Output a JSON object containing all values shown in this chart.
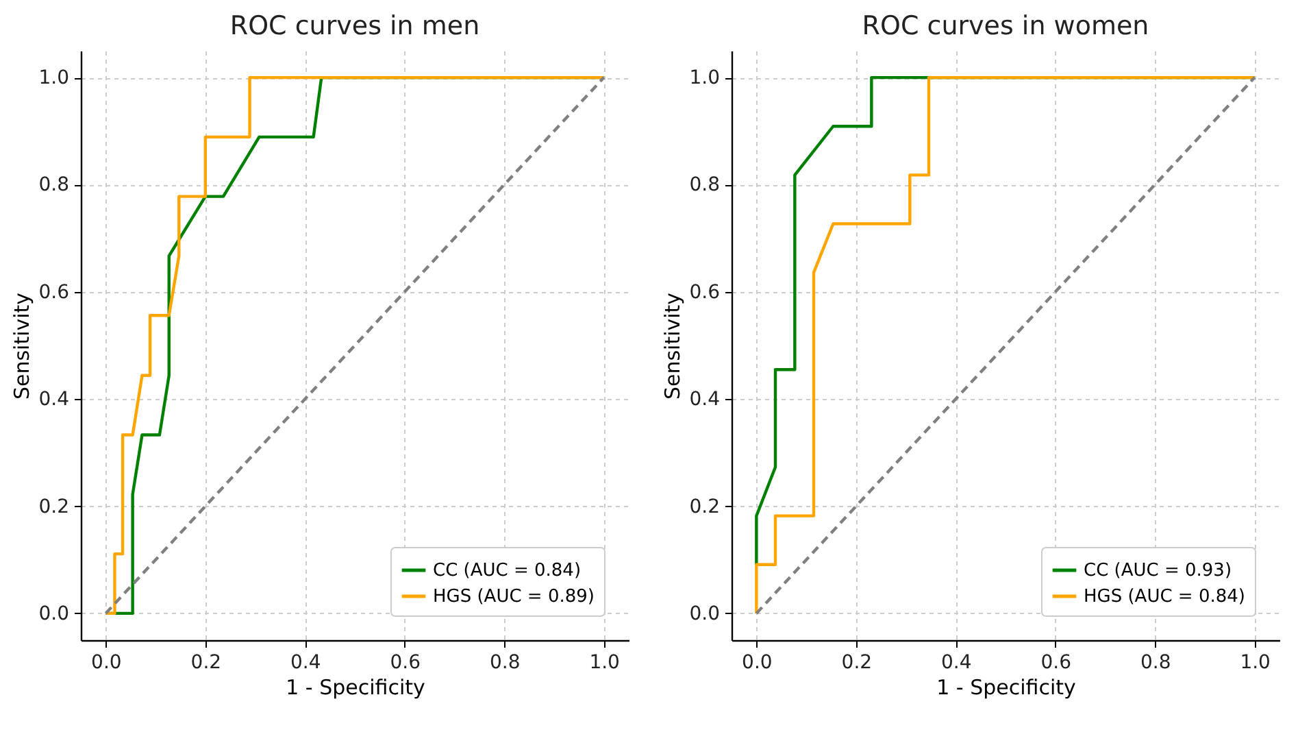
{
  "chart_data": [
    {
      "type": "line",
      "title": "ROC curves in men",
      "xlabel": "1 - Specificity",
      "ylabel": "Sensitivity",
      "xlim": [
        -0.05,
        1.05
      ],
      "ylim": [
        -0.05,
        1.05
      ],
      "xticks": [
        {
          "value": 0,
          "label": "0.0"
        },
        {
          "value": 0.2,
          "label": "0.2"
        },
        {
          "value": 0.4,
          "label": "0.4"
        },
        {
          "value": 0.6,
          "label": "0.6"
        },
        {
          "value": 0.8,
          "label": "0.8"
        },
        {
          "value": 1,
          "label": "1.0"
        }
      ],
      "yticks": [
        {
          "value": 0,
          "label": "0.0"
        },
        {
          "value": 0.2,
          "label": "0.2"
        },
        {
          "value": 0.4,
          "label": "0.4"
        },
        {
          "value": 0.6,
          "label": "0.6"
        },
        {
          "value": 0.8,
          "label": "0.8"
        },
        {
          "value": 1,
          "label": "1.0"
        }
      ],
      "grid": true,
      "legend": "bottom right",
      "line_style": "solid",
      "series": [
        {
          "name": "CC (AUC = 0.84)",
          "color": "#008000",
          "x": [
            0,
            0.054,
            0.054,
            0.073,
            0.108,
            0.127,
            0.127,
            0.2,
            0.236,
            0.308,
            0.417,
            0.433,
            1
          ],
          "values": [
            0,
            0,
            0.222,
            0.333,
            0.333,
            0.444,
            0.667,
            0.778,
            0.778,
            0.889,
            0.889,
            1,
            1
          ]
        },
        {
          "name": "HGS (AUC = 0.89)",
          "color": "#ffa500",
          "x": [
            0,
            0.018,
            0.018,
            0.034,
            0.034,
            0.054,
            0.073,
            0.089,
            0.089,
            0.127,
            0.147,
            0.147,
            0.2,
            0.2,
            0.289,
            0.289,
            1
          ],
          "values": [
            0,
            0,
            0.111,
            0.111,
            0.333,
            0.333,
            0.444,
            0.444,
            0.556,
            0.556,
            0.667,
            0.778,
            0.778,
            0.889,
            0.889,
            1,
            1
          ]
        },
        {
          "color": "#808080",
          "line_style": "dashed",
          "x": [
            0,
            1
          ],
          "values": [
            0,
            1
          ]
        }
      ]
    },
    {
      "type": "line",
      "title": "ROC curves in women",
      "xlabel": "1 - Specificity",
      "ylabel": "Sensitivity",
      "xlim": [
        -0.05,
        1.05
      ],
      "ylim": [
        -0.05,
        1.05
      ],
      "xticks": [
        {
          "value": 0,
          "label": "0.0"
        },
        {
          "value": 0.2,
          "label": "0.2"
        },
        {
          "value": 0.4,
          "label": "0.4"
        },
        {
          "value": 0.6,
          "label": "0.6"
        },
        {
          "value": 0.8,
          "label": "0.8"
        },
        {
          "value": 1,
          "label": "1.0"
        }
      ],
      "yticks": [
        {
          "value": 0,
          "label": "0.0"
        },
        {
          "value": 0.2,
          "label": "0.2"
        },
        {
          "value": 0.4,
          "label": "0.4"
        },
        {
          "value": 0.6,
          "label": "0.6"
        },
        {
          "value": 0.8,
          "label": "0.8"
        },
        {
          "value": 1,
          "label": "1.0"
        }
      ],
      "grid": true,
      "legend": "bottom right",
      "line_style": "solid",
      "series": [
        {
          "name": "CC (AUC = 0.93)",
          "color": "#008000",
          "x": [
            0,
            0,
            0.038,
            0.038,
            0.077,
            0.077,
            0.154,
            0.231,
            0.231,
            1
          ],
          "values": [
            0.091,
            0.182,
            0.273,
            0.455,
            0.455,
            0.818,
            0.909,
            0.909,
            1,
            1
          ]
        },
        {
          "name": "HGS (AUC = 0.84)",
          "color": "#ffa500",
          "x": [
            0,
            0,
            0.038,
            0.038,
            0.115,
            0.115,
            0.154,
            0.308,
            0.308,
            0.346,
            0.346,
            1
          ],
          "values": [
            0,
            0.091,
            0.091,
            0.182,
            0.182,
            0.636,
            0.727,
            0.727,
            0.818,
            0.818,
            1,
            1
          ]
        },
        {
          "color": "#808080",
          "line_style": "dashed",
          "x": [
            0,
            1
          ],
          "values": [
            0,
            1
          ]
        }
      ]
    }
  ]
}
